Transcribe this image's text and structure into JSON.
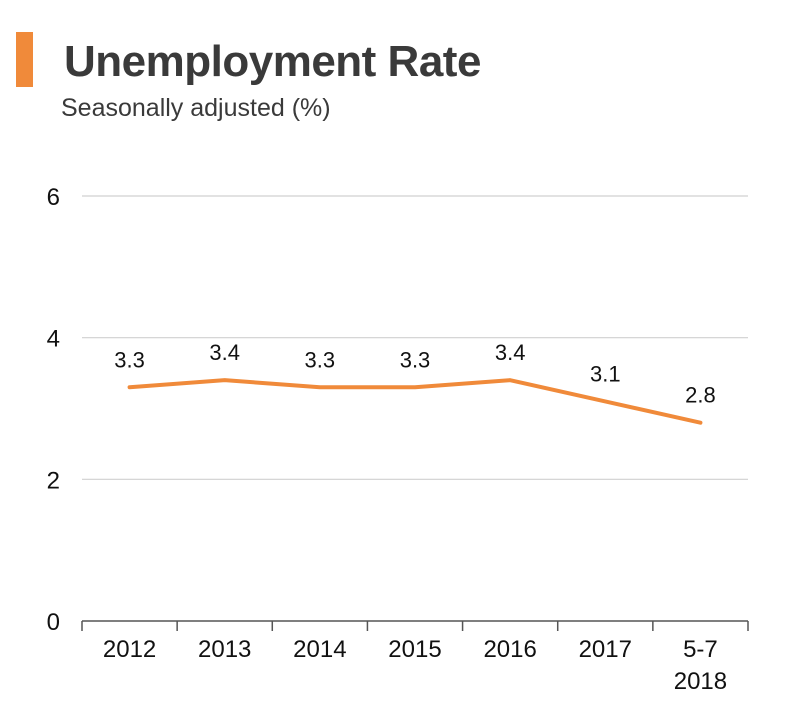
{
  "colors": {
    "accent": "#f08a3a",
    "line": "#f08a3a",
    "grid": "#d0d0d0",
    "axis": "#555555",
    "text": "#3a3a3a"
  },
  "header": {
    "title": "Unemployment Rate",
    "subtitle": "Seasonally adjusted (%)"
  },
  "chart_data": {
    "type": "line",
    "title": "Unemployment Rate",
    "subtitle": "Seasonally adjusted (%)",
    "xlabel": "",
    "ylabel": "",
    "categories": [
      [
        "2012"
      ],
      [
        "2013"
      ],
      [
        "2014"
      ],
      [
        "2015"
      ],
      [
        "2016"
      ],
      [
        "2017"
      ],
      [
        "5-7",
        "2018"
      ]
    ],
    "series": [
      {
        "values": [
          3.3,
          3.4,
          3.3,
          3.3,
          3.4,
          3.1,
          2.8
        ],
        "color": "#f08a3a"
      }
    ],
    "data_labels": [
      "3.3",
      "3.4",
      "3.3",
      "3.3",
      "3.4",
      "3.1",
      "2.8"
    ],
    "ylim": [
      0,
      6
    ],
    "yticks": [
      0,
      2,
      4,
      6
    ],
    "ytick_labels": [
      "0",
      "2",
      "4",
      "6"
    ],
    "grid": true,
    "legend": "none"
  }
}
